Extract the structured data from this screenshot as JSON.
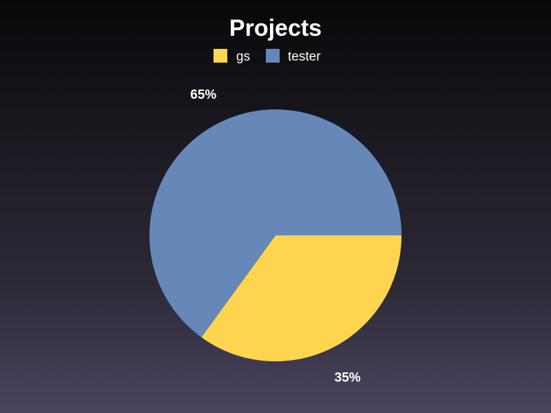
{
  "chart_data": {
    "type": "pie",
    "title": "Projects",
    "legend_position": "top",
    "series": [
      {
        "name": "gs",
        "value": 35,
        "label": "35%",
        "color": "#ffd54f"
      },
      {
        "name": "tester",
        "value": 65,
        "label": "65%",
        "color": "#6688b8"
      }
    ]
  }
}
